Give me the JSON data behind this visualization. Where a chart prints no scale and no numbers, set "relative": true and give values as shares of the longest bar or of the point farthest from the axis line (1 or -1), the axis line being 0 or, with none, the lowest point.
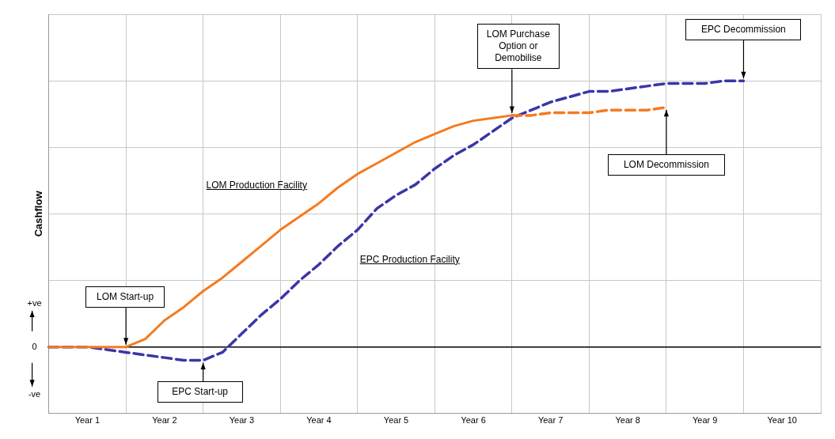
{
  "chart_data": {
    "type": "line",
    "ylabel": "Cashflow",
    "relative": true,
    "grid": true,
    "legend": false,
    "marker": "none",
    "categories": [
      null,
      null,
      "Year 1",
      null,
      null,
      null,
      "Year 2",
      null,
      null,
      null,
      "Year 3",
      null,
      null,
      null,
      "Year 4",
      null,
      null,
      null,
      "Year 5",
      null,
      null,
      null,
      "Year 6",
      null,
      null,
      null,
      "Year 7",
      null,
      null,
      null,
      "Year 8",
      null,
      null,
      null,
      "Year 9",
      null,
      null,
      null,
      "Year 10",
      null,
      null
    ],
    "series": [
      {
        "name": "LOM Production Facility",
        "color": "#f47b20",
        "line_style": "solid",
        "values": [
          0,
          0,
          0,
          0,
          0,
          0.03,
          0.1,
          0.15,
          0.21,
          0.26,
          0.32,
          0.38,
          0.44,
          0.49,
          0.54,
          0.6,
          0.65,
          0.69,
          0.73,
          0.77,
          0.8,
          0.83,
          0.85,
          0.86,
          0.87,
          null,
          null,
          null,
          null,
          null,
          null,
          null,
          null,
          null,
          null,
          null,
          null,
          null,
          null,
          null,
          null
        ]
      },
      {
        "color": "#f47b20",
        "line_style": "dashed",
        "values": [
          null,
          null,
          null,
          null,
          null,
          null,
          null,
          null,
          null,
          null,
          null,
          null,
          null,
          null,
          null,
          null,
          null,
          null,
          null,
          null,
          null,
          null,
          null,
          null,
          0.87,
          0.87,
          0.88,
          0.88,
          0.88,
          0.89,
          0.89,
          0.89,
          0.9,
          null,
          null,
          null,
          null,
          null,
          null,
          null,
          null
        ]
      },
      {
        "name": "EPC Production Facility",
        "color": "#3a36a8",
        "line_style": "dashed",
        "values": [
          0,
          0,
          0,
          -0.01,
          -0.02,
          -0.03,
          -0.04,
          -0.05,
          -0.05,
          -0.02,
          0.05,
          0.12,
          0.18,
          0.25,
          0.31,
          0.38,
          0.44,
          0.52,
          0.57,
          0.61,
          0.67,
          0.72,
          0.76,
          0.81,
          0.86,
          0.89,
          0.92,
          0.94,
          0.96,
          0.96,
          0.97,
          0.98,
          0.99,
          0.99,
          0.99,
          1.0,
          1.0,
          null,
          null,
          null,
          null
        ]
      }
    ],
    "annotations": [
      "LOM Start-up",
      "EPC Start-up",
      "LOM Purchase Option or Demobilise",
      "EPC Decommission",
      "LOM Decommission",
      "0",
      "+ve",
      "-ve"
    ]
  }
}
